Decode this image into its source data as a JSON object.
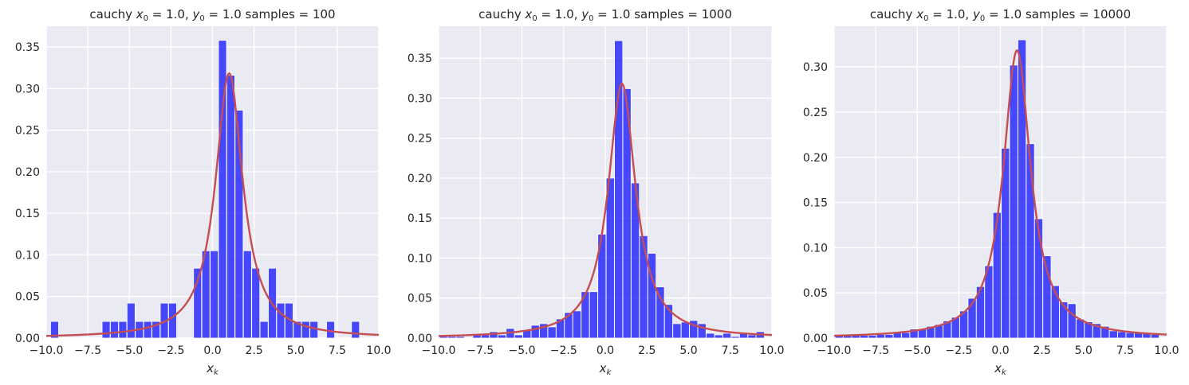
{
  "colors": {
    "background": "#eaeaf2",
    "grid": "#ffffff",
    "bar": "#0000ff",
    "curve": "#c44e52"
  },
  "chart_data": [
    {
      "type": "bar",
      "title": "cauchy $x_0 = 1.0$, $y_0 = 1.0$  samples = 100",
      "title_parts": [
        "cauchy ",
        "x",
        "0",
        " = 1.0, ",
        "y",
        "0",
        " = 1.0  samples = 100"
      ],
      "xlabel_parts": [
        "x",
        "k"
      ],
      "xlim": [
        -10,
        10
      ],
      "ylim": [
        0,
        0.375
      ],
      "xticks": [
        "−10.0",
        "−7.5",
        "−5.0",
        "−2.5",
        "0.0",
        "2.5",
        "5.0",
        "7.5",
        "10.0"
      ],
      "yticks": [
        "0.00",
        "0.05",
        "0.10",
        "0.15",
        "0.20",
        "0.25",
        "0.30",
        "0.35"
      ],
      "grid": true,
      "bin_width": 0.48,
      "bins": [
        {
          "x": -9.5,
          "y": 0.02
        },
        {
          "x": -6.4,
          "y": 0.02
        },
        {
          "x": -5.9,
          "y": 0.02
        },
        {
          "x": -5.4,
          "y": 0.02
        },
        {
          "x": -4.9,
          "y": 0.042
        },
        {
          "x": -4.4,
          "y": 0.02
        },
        {
          "x": -3.9,
          "y": 0.02
        },
        {
          "x": -3.4,
          "y": 0.02
        },
        {
          "x": -2.9,
          "y": 0.042
        },
        {
          "x": -2.4,
          "y": 0.042
        },
        {
          "x": -0.9,
          "y": 0.084
        },
        {
          "x": -0.4,
          "y": 0.105
        },
        {
          "x": 0.1,
          "y": 0.105
        },
        {
          "x": 0.6,
          "y": 0.358
        },
        {
          "x": 1.1,
          "y": 0.316
        },
        {
          "x": 1.6,
          "y": 0.274
        },
        {
          "x": 2.1,
          "y": 0.105
        },
        {
          "x": 2.6,
          "y": 0.084
        },
        {
          "x": 3.1,
          "y": 0.02
        },
        {
          "x": 3.6,
          "y": 0.084
        },
        {
          "x": 4.1,
          "y": 0.042
        },
        {
          "x": 4.6,
          "y": 0.042
        },
        {
          "x": 5.1,
          "y": 0.02
        },
        {
          "x": 5.6,
          "y": 0.02
        },
        {
          "x": 6.1,
          "y": 0.02
        },
        {
          "x": 7.1,
          "y": 0.02
        },
        {
          "x": 8.6,
          "y": 0.02
        }
      ],
      "curve": {
        "x0": 1.0,
        "gamma": 1.0
      }
    },
    {
      "type": "bar",
      "title": "cauchy $x_0 = 1.0$, $y_0 = 1.0$  samples = 1000",
      "title_parts": [
        "cauchy ",
        "x",
        "0",
        " = 1.0, ",
        "y",
        "0",
        " = 1.0  samples = 1000"
      ],
      "xlabel_parts": [
        "x",
        "k"
      ],
      "xlim": [
        -10,
        10
      ],
      "ylim": [
        0,
        0.39
      ],
      "xticks": [
        "−10.0",
        "−7.5",
        "−5.0",
        "−2.5",
        "0.0",
        "2.5",
        "5.0",
        "7.5",
        "10.0"
      ],
      "yticks": [
        "0.00",
        "0.05",
        "0.10",
        "0.15",
        "0.20",
        "0.25",
        "0.30",
        "0.35"
      ],
      "grid": true,
      "bin_width": 0.49,
      "bins": [
        {
          "x": -9.7,
          "y": 0.002
        },
        {
          "x": -9.2,
          "y": 0.002
        },
        {
          "x": -8.7,
          "y": 0.002
        },
        {
          "x": -7.7,
          "y": 0.004
        },
        {
          "x": -7.2,
          "y": 0.004
        },
        {
          "x": -6.7,
          "y": 0.008
        },
        {
          "x": -6.2,
          "y": 0.004
        },
        {
          "x": -5.7,
          "y": 0.012
        },
        {
          "x": -5.2,
          "y": 0.004
        },
        {
          "x": -4.7,
          "y": 0.01
        },
        {
          "x": -4.2,
          "y": 0.016
        },
        {
          "x": -3.7,
          "y": 0.018
        },
        {
          "x": -3.2,
          "y": 0.014
        },
        {
          "x": -2.7,
          "y": 0.024
        },
        {
          "x": -2.2,
          "y": 0.032
        },
        {
          "x": -1.7,
          "y": 0.034
        },
        {
          "x": -1.2,
          "y": 0.058
        },
        {
          "x": -0.7,
          "y": 0.058
        },
        {
          "x": -0.2,
          "y": 0.13
        },
        {
          "x": 0.3,
          "y": 0.2
        },
        {
          "x": 0.8,
          "y": 0.372
        },
        {
          "x": 1.3,
          "y": 0.312
        },
        {
          "x": 1.8,
          "y": 0.194
        },
        {
          "x": 2.3,
          "y": 0.128
        },
        {
          "x": 2.8,
          "y": 0.106
        },
        {
          "x": 3.3,
          "y": 0.064
        },
        {
          "x": 3.8,
          "y": 0.042
        },
        {
          "x": 4.3,
          "y": 0.018
        },
        {
          "x": 4.8,
          "y": 0.02
        },
        {
          "x": 5.3,
          "y": 0.022
        },
        {
          "x": 5.8,
          "y": 0.018
        },
        {
          "x": 6.3,
          "y": 0.006
        },
        {
          "x": 6.8,
          "y": 0.004
        },
        {
          "x": 7.3,
          "y": 0.006
        },
        {
          "x": 7.8,
          "y": 0.002
        },
        {
          "x": 8.3,
          "y": 0.006
        },
        {
          "x": 8.8,
          "y": 0.004
        },
        {
          "x": 9.3,
          "y": 0.008
        }
      ],
      "curve": {
        "x0": 1.0,
        "gamma": 1.0
      }
    },
    {
      "type": "bar",
      "title": "cauchy $x_0 = 1.0$, $y_0 = 1.0$  samples = 10000",
      "title_parts": [
        "cauchy ",
        "x",
        "0",
        " = 1.0, ",
        "y",
        "0",
        " = 1.0  samples = 10000"
      ],
      "xlabel_parts": [
        "x",
        "k"
      ],
      "xlim": [
        -10,
        10
      ],
      "ylim": [
        0,
        0.345
      ],
      "xticks": [
        "−10.0",
        "−7.5",
        "−5.0",
        "−2.5",
        "0.0",
        "2.5",
        "5.0",
        "7.5",
        "10.0"
      ],
      "yticks": [
        "0.00",
        "0.05",
        "0.10",
        "0.15",
        "0.20",
        "0.25",
        "0.30"
      ],
      "grid": true,
      "bin_width": 0.49,
      "bins": [
        {
          "x": -9.7,
          "y": 0.003
        },
        {
          "x": -9.2,
          "y": 0.003
        },
        {
          "x": -8.7,
          "y": 0.003
        },
        {
          "x": -8.2,
          "y": 0.003
        },
        {
          "x": -7.7,
          "y": 0.003
        },
        {
          "x": -7.2,
          "y": 0.004
        },
        {
          "x": -6.7,
          "y": 0.004
        },
        {
          "x": -6.2,
          "y": 0.006
        },
        {
          "x": -5.7,
          "y": 0.006
        },
        {
          "x": -5.2,
          "y": 0.01
        },
        {
          "x": -4.7,
          "y": 0.01
        },
        {
          "x": -4.2,
          "y": 0.013
        },
        {
          "x": -3.7,
          "y": 0.015
        },
        {
          "x": -3.2,
          "y": 0.019
        },
        {
          "x": -2.7,
          "y": 0.023
        },
        {
          "x": -2.2,
          "y": 0.03
        },
        {
          "x": -1.7,
          "y": 0.044
        },
        {
          "x": -1.2,
          "y": 0.057
        },
        {
          "x": -0.7,
          "y": 0.08
        },
        {
          "x": -0.2,
          "y": 0.139
        },
        {
          "x": 0.3,
          "y": 0.21
        },
        {
          "x": 0.8,
          "y": 0.302
        },
        {
          "x": 1.3,
          "y": 0.33
        },
        {
          "x": 1.8,
          "y": 0.215
        },
        {
          "x": 2.3,
          "y": 0.132
        },
        {
          "x": 2.8,
          "y": 0.091
        },
        {
          "x": 3.3,
          "y": 0.058
        },
        {
          "x": 3.8,
          "y": 0.04
        },
        {
          "x": 4.3,
          "y": 0.038
        },
        {
          "x": 4.8,
          "y": 0.021
        },
        {
          "x": 5.3,
          "y": 0.018
        },
        {
          "x": 5.8,
          "y": 0.016
        },
        {
          "x": 6.3,
          "y": 0.013
        },
        {
          "x": 6.8,
          "y": 0.008
        },
        {
          "x": 7.3,
          "y": 0.007
        },
        {
          "x": 7.8,
          "y": 0.006
        },
        {
          "x": 8.3,
          "y": 0.006
        },
        {
          "x": 8.8,
          "y": 0.005
        },
        {
          "x": 9.3,
          "y": 0.004
        }
      ],
      "curve": {
        "x0": 1.0,
        "gamma": 1.0
      }
    }
  ]
}
